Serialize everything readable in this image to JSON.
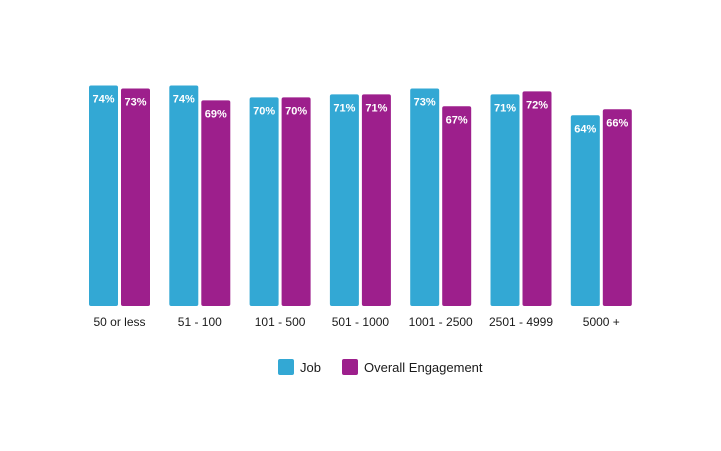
{
  "chart_data": {
    "type": "bar",
    "categories": [
      "50 or less",
      "51 - 100",
      "101 - 500",
      "501 - 1000",
      "1001 - 2500",
      "2501 - 4999",
      "5000 +"
    ],
    "series": [
      {
        "name": "Job",
        "color": "#33a8d4",
        "values": [
          74,
          74,
          70,
          71,
          73,
          71,
          64
        ],
        "labels": [
          "74%",
          "74%",
          "70%",
          "71%",
          "73%",
          "71%",
          "64%"
        ]
      },
      {
        "name": "Overall Engagement",
        "color": "#9d1f8c",
        "values": [
          73,
          69,
          70,
          71,
          67,
          72,
          66
        ],
        "labels": [
          "73%",
          "69%",
          "70%",
          "71%",
          "67%",
          "72%",
          "66%"
        ]
      }
    ],
    "title": "",
    "xlabel": "",
    "ylabel": "",
    "grid": false,
    "legend_position": "bottom-center"
  }
}
